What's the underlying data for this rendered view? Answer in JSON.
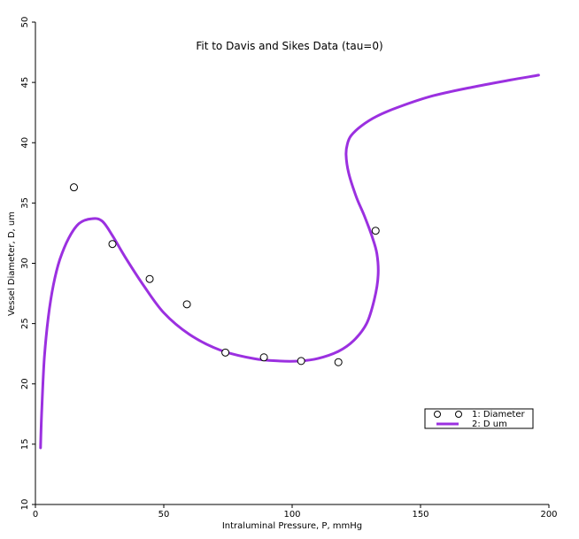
{
  "chart_data": {
    "type": "scatter",
    "title": "Fit to Davis and Sikes Data (tau=0)",
    "xlabel": "Intraluminal Pressure, P, mmHg",
    "ylabel": "Vessel Diameter, D, um",
    "xlim": [
      0,
      200
    ],
    "ylim": [
      10,
      50
    ],
    "xticks": [
      0,
      50,
      100,
      150,
      200
    ],
    "yticks": [
      10,
      15,
      20,
      25,
      30,
      35,
      40,
      45,
      50
    ],
    "grid": false,
    "legend_position": "right",
    "colors": {
      "marker": "#000000",
      "curve": "#9b30e0",
      "axis": "#000000"
    },
    "series": [
      {
        "name": "1: Diameter",
        "kind": "scatter",
        "marker": "open-circle",
        "x": [
          15,
          30,
          44.5,
          59,
          74,
          89,
          103.5,
          118,
          132.5
        ],
        "y": [
          36.3,
          31.6,
          28.7,
          26.6,
          22.6,
          22.2,
          21.9,
          21.8,
          32.7
        ]
      },
      {
        "name": "2: D um",
        "kind": "line",
        "x": [
          2,
          2.5,
          3.5,
          5,
          7,
          9.5,
          13,
          17,
          22,
          26,
          30,
          35,
          42,
          50,
          60,
          72,
          85,
          95,
          103,
          110,
          118,
          124,
          129,
          132,
          133.5,
          133,
          131,
          128,
          125,
          122,
          121,
          121.5,
          123,
          127,
          133,
          142,
          155,
          170,
          185,
          196
        ],
        "y": [
          14.7,
          18,
          22.2,
          25.5,
          28.2,
          30.3,
          32.1,
          33.3,
          33.7,
          33.5,
          32.3,
          30.5,
          28.2,
          25.9,
          24.1,
          22.8,
          22.1,
          21.9,
          21.9,
          22.1,
          22.7,
          23.6,
          25.0,
          27.0,
          29.0,
          30.8,
          32.3,
          34.0,
          35.5,
          37.5,
          39.0,
          39.9,
          40.6,
          41.4,
          42.2,
          43.0,
          43.9,
          44.6,
          45.2,
          45.6
        ]
      }
    ]
  }
}
